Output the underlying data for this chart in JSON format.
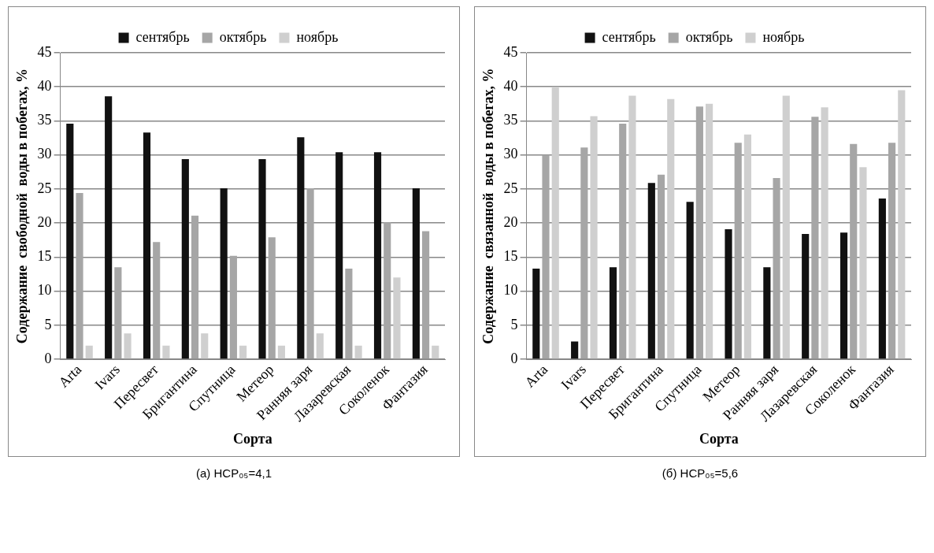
{
  "chart_data": [
    {
      "type": "bar",
      "categories": [
        "Arta",
        "Ivars",
        "Пересвет",
        "Бригантина",
        "Спутница",
        "Метеор",
        "Ранняя заря",
        "Лазаревская",
        "Соколенок",
        "Фантазия"
      ],
      "series": [
        {
          "name": "сентябрь",
          "color": "#111111",
          "values": [
            34.6,
            38.6,
            33.3,
            29.4,
            25.1,
            29.4,
            32.6,
            30.4,
            30.4,
            25.1
          ]
        },
        {
          "name": "октябрь",
          "color": "#a6a6a6",
          "values": [
            24.4,
            13.5,
            17.2,
            21.1,
            15.2,
            17.9,
            25.1,
            13.3,
            20.1,
            18.8
          ]
        },
        {
          "name": "ноябрь",
          "color": "#cfcfcf",
          "values": [
            2,
            3.8,
            2,
            3.8,
            2,
            2,
            3.8,
            2,
            12,
            2
          ]
        }
      ],
      "xlabel": "Сорта",
      "ylabel": "Содержание  свободной  воды в побегах, %",
      "ylim": [
        0,
        45
      ],
      "yticks": [
        0,
        5,
        10,
        15,
        20,
        25,
        30,
        35,
        40,
        45
      ],
      "grid": "y",
      "legend": "top",
      "annotations": [
        "(а) НСР₀₅=4,1"
      ]
    },
    {
      "type": "bar",
      "categories": [
        "Arta",
        "Ivars",
        "Пересвет",
        "Бригантина",
        "Спутница",
        "Метеор",
        "Ранняя заря",
        "Лазаревская",
        "Соколенок",
        "Фантазия"
      ],
      "series": [
        {
          "name": "сентябрь",
          "color": "#111111",
          "values": [
            13.3,
            2.6,
            13.5,
            25.9,
            23.1,
            19.1,
            13.5,
            18.4,
            18.6,
            23.6
          ]
        },
        {
          "name": "октябрь",
          "color": "#a6a6a6",
          "values": [
            30,
            31.1,
            34.6,
            27.1,
            37.1,
            31.8,
            26.6,
            35.6,
            31.6,
            31.8
          ]
        },
        {
          "name": "ноябрь",
          "color": "#cfcfcf",
          "values": [
            40,
            35.7,
            38.7,
            38.2,
            37.5,
            33,
            38.7,
            37,
            28.2,
            39.5
          ]
        }
      ],
      "xlabel": "Сорта",
      "ylabel": "Содержание  связанной  воды в побегах, %",
      "ylim": [
        0,
        45
      ],
      "yticks": [
        0,
        5,
        10,
        15,
        20,
        25,
        30,
        35,
        40,
        45
      ],
      "grid": "y",
      "legend": "top",
      "annotations": [
        "(б) НСР₀₅=5,6"
      ]
    }
  ]
}
